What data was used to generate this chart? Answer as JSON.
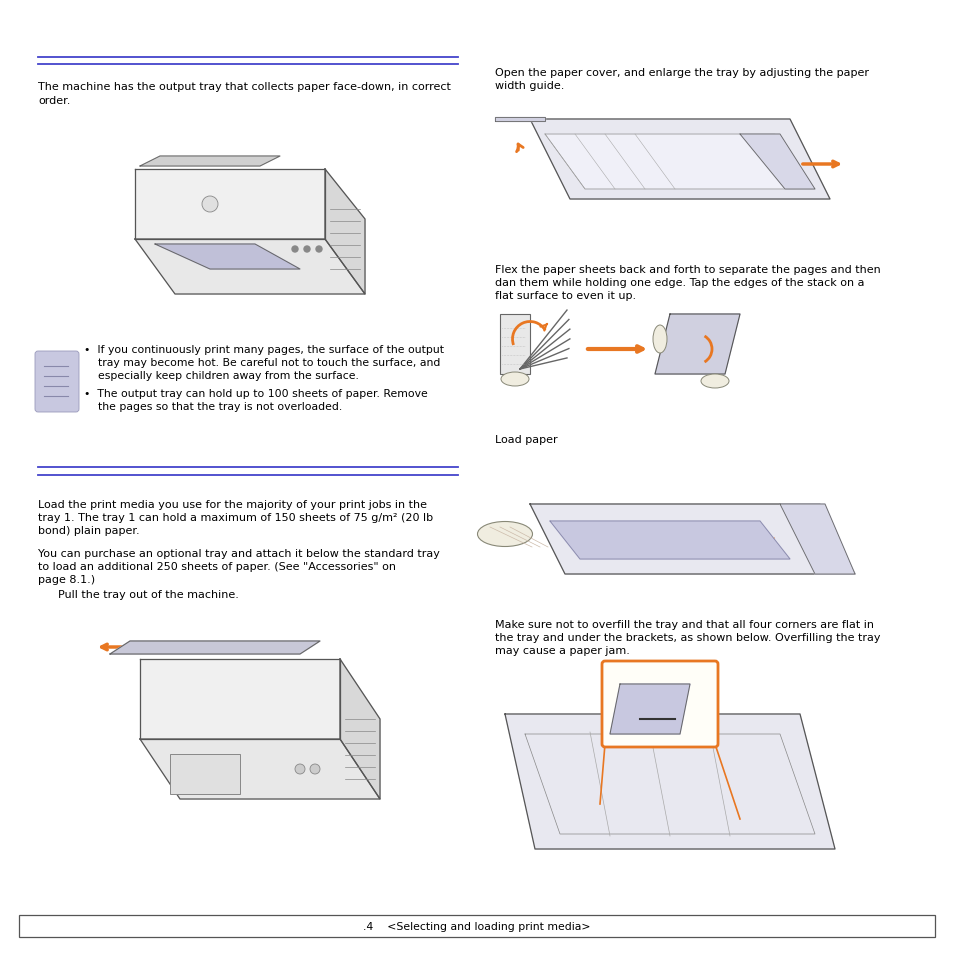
{
  "page_background": "#ffffff",
  "page_width": 9.54,
  "page_height": 9.54,
  "dpi": 100,
  "blue_line_color": "#4444cc",
  "orange_color": "#E87722",
  "light_blue_note_bg": "#c8c8e0",
  "text_color": "#000000",
  "footer_text": ".4    <Selecting and loading print media>",
  "lines_left": [
    [
      "The machine has the output tray that collects paper face-down, in correct",
      0.898
    ],
    [
      "order.",
      0.878
    ]
  ],
  "note_b1_lines": [
    "If you continuously print many pages, the surface of the output",
    "tray may become hot. Be careful not to touch the surface, and",
    "especially keep children away from the surface."
  ],
  "note_b2_lines": [
    "The output tray can hold up to 100 sheets of paper. Remove",
    "the pages so that the tray is not overloaded."
  ],
  "s2_lines": [
    "Load the print media you use for the majority of your print jobs in the",
    "tray 1. The tray 1 can hold a maximum of 150 sheets of 75 g/m² (20 lb",
    "bond) plain paper."
  ],
  "s2b_lines": [
    "You can purchase an optional tray and attach it below the standard tray",
    "to load an additional 250 sheets of paper. (See \"Accessories\" on",
    "page 8.1.)"
  ],
  "pull_text": "Pull the tray out of the machine.",
  "rt1_lines": [
    "Open the paper cover, and enlarge the tray by adjusting the paper",
    "width guide."
  ],
  "rt2_lines": [
    "Flex the paper sheets back and forth to separate the pages and then",
    "dan them while holding one edge. Tap the edges of the stack on a",
    "flat surface to even it up."
  ],
  "rt3": "Load paper",
  "rt4_lines": [
    "Make sure not to overfill the tray and that all four corners are flat in",
    "the tray and under the brackets, as shown below. Overfilling the tray",
    "may cause a paper jam."
  ]
}
